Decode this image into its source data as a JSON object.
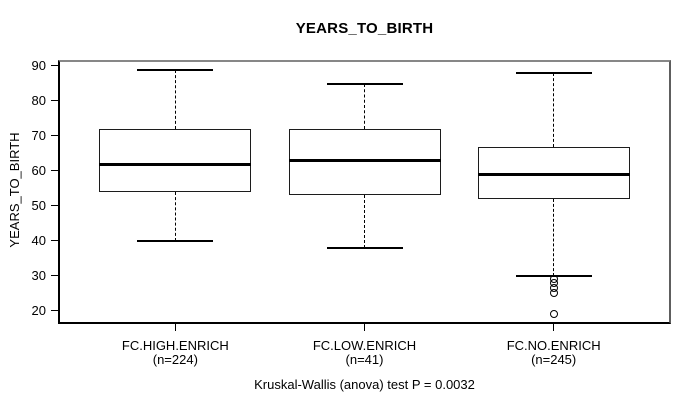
{
  "title": "YEARS_TO_BIRTH",
  "annotation": "Kruskal-Wallis (anova) test P = 0.0032",
  "chart_data": {
    "type": "boxplot",
    "title": "YEARS_TO_BIRTH",
    "xlabel": "",
    "ylabel": "YEARS_TO_BIRTH",
    "ylim": [
      16.2,
      91.8
    ],
    "yticks": [
      20,
      30,
      40,
      50,
      60,
      70,
      80,
      90
    ],
    "grid": false,
    "categories": [
      "FC.HIGH.ENRICH",
      "FC.LOW.ENRICH",
      "FC.NO.ENRICH"
    ],
    "groups": [
      {
        "label": "FC.HIGH.ENRICH",
        "sublabel": "(n=224)",
        "n": 224,
        "whisker_low": 40,
        "q1": 54,
        "median": 62,
        "q3": 72,
        "whisker_high": 89,
        "outliers": []
      },
      {
        "label": "FC.LOW.ENRICH",
        "sublabel": "(n=41)",
        "n": 41,
        "whisker_low": 38,
        "q1": 53,
        "median": 63,
        "q3": 72,
        "whisker_high": 85,
        "outliers": []
      },
      {
        "label": "FC.NO.ENRICH",
        "sublabel": "(n=245)",
        "n": 245,
        "whisker_low": 30,
        "q1": 52,
        "median": 59,
        "q3": 67,
        "whisker_high": 88,
        "outliers": [
          29,
          28,
          26.5,
          25,
          19
        ]
      }
    ],
    "annotation": "Kruskal-Wallis (anova) test P = 0.0032",
    "colors": {
      "line": "#000000",
      "box_fill": "#ffffff",
      "frame_top": "#878787",
      "frame_right": "#5e5e5e",
      "background": "#ffffff"
    }
  }
}
